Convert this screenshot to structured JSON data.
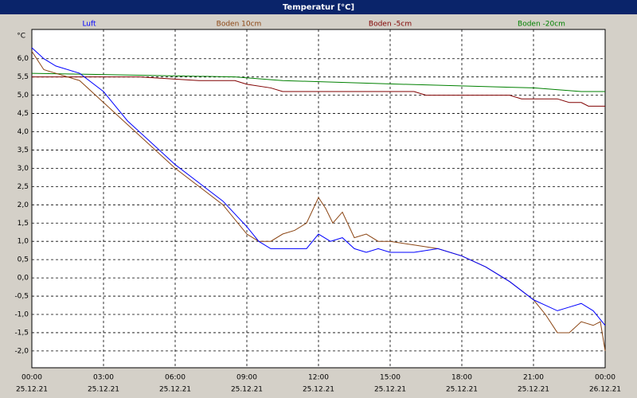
{
  "chart_data": {
    "type": "line",
    "title": "Temperatur [°C]",
    "y_unit": "°C",
    "xlim": [
      0,
      24
    ],
    "ylim": [
      -2.46,
      6.8
    ],
    "xticks": [
      {
        "value": 0,
        "label": "00:00"
      },
      {
        "value": 3,
        "label": "03:00"
      },
      {
        "value": 6,
        "label": "06:00"
      },
      {
        "value": 9,
        "label": "09:00"
      },
      {
        "value": 12,
        "label": "12:00"
      },
      {
        "value": 15,
        "label": "15:00"
      },
      {
        "value": 18,
        "label": "18:00"
      },
      {
        "value": 21,
        "label": "21:00"
      },
      {
        "value": 24,
        "label": "00:00"
      }
    ],
    "xtick_dates": [
      "25.12.21",
      "25.12.21",
      "25.12.21",
      "25.12.21",
      "25.12.21",
      "25.12.21",
      "25.12.21",
      "25.12.21",
      "26.12.21"
    ],
    "yticks": [
      {
        "value": 6,
        "label": "6,0"
      },
      {
        "value": 5.5,
        "label": "5,5"
      },
      {
        "value": 5,
        "label": "5,0"
      },
      {
        "value": 4.5,
        "label": "4,5"
      },
      {
        "value": 4,
        "label": "4,0"
      },
      {
        "value": 3.5,
        "label": "3,5"
      },
      {
        "value": 3,
        "label": "3,0"
      },
      {
        "value": 2.5,
        "label": "2,5"
      },
      {
        "value": 2,
        "label": "2,0"
      },
      {
        "value": 1.5,
        "label": "1,5"
      },
      {
        "value": 1,
        "label": "1,0"
      },
      {
        "value": 0.5,
        "label": "0,5"
      },
      {
        "value": 0,
        "label": "0,0"
      },
      {
        "value": -0.5,
        "label": "-0,5"
      },
      {
        "value": -1,
        "label": "-1,0"
      },
      {
        "value": -1.5,
        "label": "-1,5"
      },
      {
        "value": -2,
        "label": "-2,0"
      }
    ],
    "grid": true,
    "series": [
      {
        "name": "Luft",
        "color": "#0000ff",
        "x": [
          0,
          0.5,
          1,
          2,
          3,
          4,
          5,
          6,
          7,
          8,
          9,
          9.5,
          10,
          11,
          11.5,
          12,
          12.5,
          13,
          13.5,
          14,
          14.5,
          15,
          16,
          17,
          18,
          19,
          20,
          21,
          22,
          22.5,
          23,
          23.5,
          24
        ],
        "values": [
          6.3,
          6.0,
          5.8,
          5.6,
          5.1,
          4.3,
          3.7,
          3.1,
          2.6,
          2.1,
          1.4,
          1.0,
          0.8,
          0.8,
          0.8,
          1.2,
          1.0,
          1.1,
          0.8,
          0.7,
          0.8,
          0.7,
          0.7,
          0.8,
          0.6,
          0.3,
          -0.1,
          -0.6,
          -0.9,
          -0.8,
          -0.7,
          -0.9,
          -1.3
        ]
      },
      {
        "name": "Boden 10cm",
        "color": "#8b4513",
        "x": [
          0,
          0.5,
          1,
          2,
          3,
          4,
          5,
          6,
          7,
          8,
          9,
          9.5,
          10,
          10.5,
          11,
          11.5,
          12,
          12.3,
          12.6,
          13,
          13.5,
          14,
          14.5,
          15,
          16,
          17,
          18,
          19,
          20,
          21,
          21.5,
          22,
          22.5,
          23,
          23.5,
          23.8,
          24
        ],
        "values": [
          6.2,
          5.7,
          5.6,
          5.4,
          4.8,
          4.2,
          3.6,
          3.0,
          2.5,
          2.0,
          1.2,
          1.0,
          1.0,
          1.2,
          1.3,
          1.5,
          2.2,
          1.9,
          1.5,
          1.8,
          1.1,
          1.2,
          1.0,
          1.0,
          0.9,
          0.8,
          0.6,
          0.3,
          -0.1,
          -0.6,
          -1.0,
          -1.5,
          -1.5,
          -1.2,
          -1.3,
          -1.2,
          -2.0
        ]
      },
      {
        "name": "Boden -5cm",
        "color": "#800000",
        "x": [
          0,
          4.5,
          7,
          8.5,
          9,
          10,
          10.5,
          16,
          16.5,
          20,
          20.5,
          22,
          22.5,
          23,
          23.3,
          24
        ],
        "values": [
          5.5,
          5.5,
          5.4,
          5.4,
          5.3,
          5.2,
          5.1,
          5.1,
          5.0,
          5.0,
          4.9,
          4.9,
          4.8,
          4.8,
          4.7,
          4.7
        ]
      },
      {
        "name": "Boden -20cm",
        "color": "#008000",
        "x": [
          0,
          8.5,
          10.5,
          15.5,
          21,
          23,
          24
        ],
        "values": [
          5.6,
          5.5,
          5.4,
          5.3,
          5.2,
          5.1,
          5.1
        ]
      }
    ]
  }
}
